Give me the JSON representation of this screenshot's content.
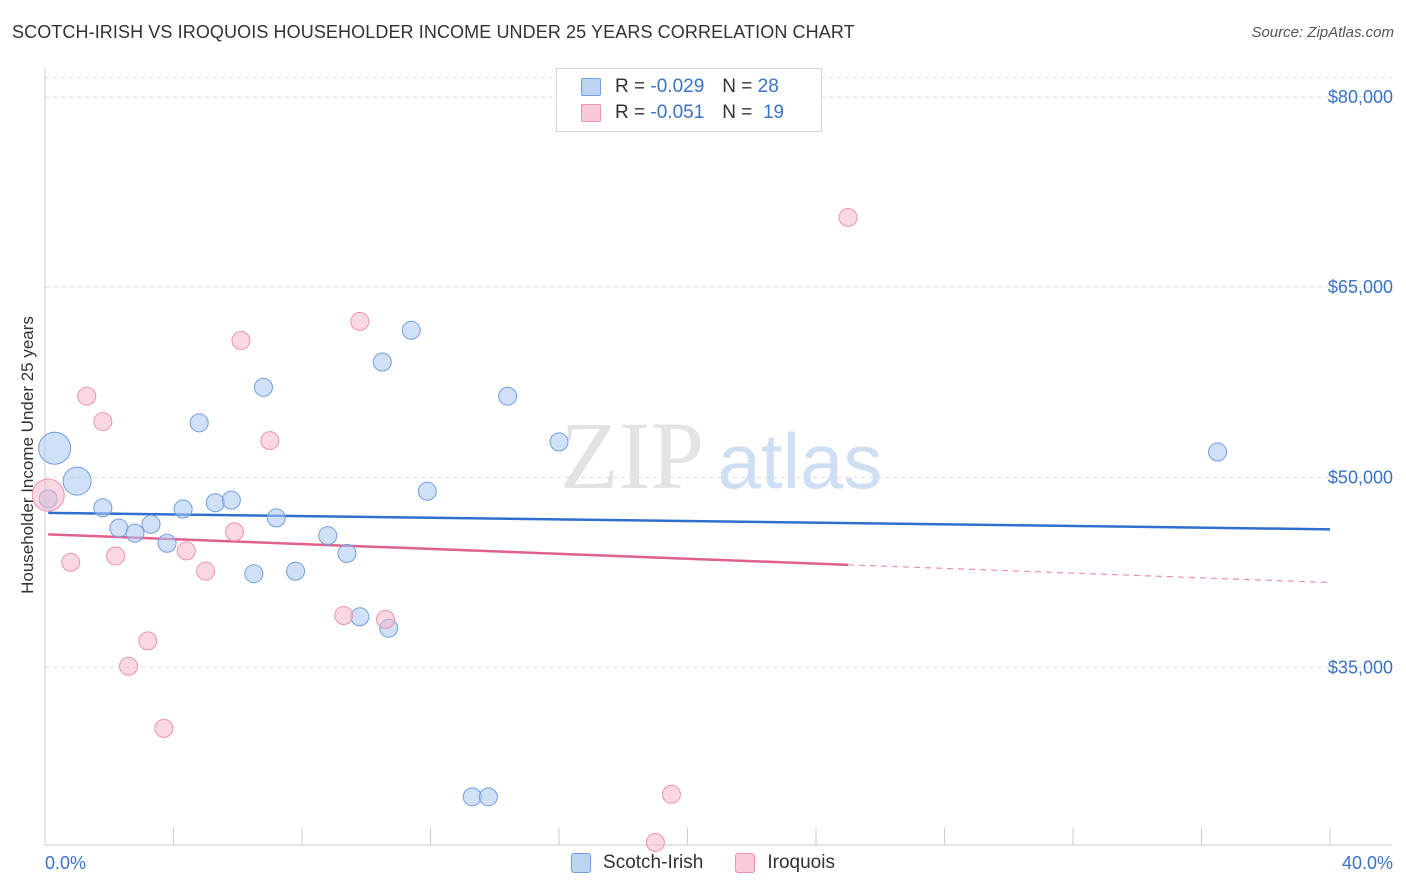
{
  "header": {
    "title": "SCOTCH-IRISH VS IROQUOIS HOUSEHOLDER INCOME UNDER 25 YEARS CORRELATION CHART",
    "source": "Source: ZipAtlas.com"
  },
  "watermark": {
    "zip": "ZIP",
    "atlas": "atlas"
  },
  "legend": {
    "rows": [
      {
        "r_label": "R =",
        "r_value": "-0.029",
        "n_label": "N =",
        "n_value": "28",
        "color": "#a9c8f0"
      },
      {
        "r_label": "R =",
        "r_value": "-0.051",
        "n_label": "N =",
        "n_value": "19",
        "color": "#f6b8cc"
      }
    ]
  },
  "chart_data": {
    "type": "scatter",
    "title": "SCOTCH-IRISH VS IROQUOIS HOUSEHOLDER INCOME UNDER 25 YEARS CORRELATION CHART",
    "xlabel": "",
    "ylabel": "Householder Income Under 25 years",
    "xlim": [
      0,
      40
    ],
    "ylim": [
      21000,
      81500
    ],
    "x_tick_labels": [
      "0.0%",
      "40.0%"
    ],
    "y_ticks": [
      {
        "value": 35000,
        "label": "$35,000"
      },
      {
        "value": 50000,
        "label": "$50,000"
      },
      {
        "value": 65000,
        "label": "$65,000"
      },
      {
        "value": 80000,
        "label": "$80,000"
      }
    ],
    "grid": true,
    "legend_position": "top-center",
    "series": [
      {
        "name": "Scotch-Irish",
        "color": "#a9c8f0",
        "stroke": "#6f9fe0",
        "trend_color": "#2f6fce",
        "points": [
          {
            "x": 0.3,
            "y": 52300,
            "size": 16
          },
          {
            "x": 1.0,
            "y": 49700,
            "size": 14
          },
          {
            "x": 1.8,
            "y": 47600,
            "size": 9
          },
          {
            "x": 2.3,
            "y": 46000,
            "size": 9
          },
          {
            "x": 2.8,
            "y": 45600,
            "size": 9
          },
          {
            "x": 3.3,
            "y": 46300,
            "size": 9
          },
          {
            "x": 3.8,
            "y": 44800,
            "size": 9
          },
          {
            "x": 4.3,
            "y": 47500,
            "size": 9
          },
          {
            "x": 4.8,
            "y": 54300,
            "size": 9
          },
          {
            "x": 5.3,
            "y": 48000,
            "size": 9
          },
          {
            "x": 5.8,
            "y": 48200,
            "size": 9
          },
          {
            "x": 6.5,
            "y": 42400,
            "size": 9
          },
          {
            "x": 6.8,
            "y": 57100,
            "size": 9
          },
          {
            "x": 7.2,
            "y": 46800,
            "size": 9
          },
          {
            "x": 7.8,
            "y": 42600,
            "size": 9
          },
          {
            "x": 8.8,
            "y": 45400,
            "size": 9
          },
          {
            "x": 9.4,
            "y": 44000,
            "size": 9
          },
          {
            "x": 9.8,
            "y": 39000,
            "size": 9
          },
          {
            "x": 10.5,
            "y": 59100,
            "size": 9
          },
          {
            "x": 10.7,
            "y": 38100,
            "size": 9
          },
          {
            "x": 11.4,
            "y": 61600,
            "size": 9
          },
          {
            "x": 11.9,
            "y": 48900,
            "size": 9
          },
          {
            "x": 13.3,
            "y": 24800,
            "size": 9
          },
          {
            "x": 13.8,
            "y": 24800,
            "size": 9
          },
          {
            "x": 14.4,
            "y": 56400,
            "size": 9
          },
          {
            "x": 16.0,
            "y": 52800,
            "size": 9
          },
          {
            "x": 36.5,
            "y": 52000,
            "size": 9
          },
          {
            "x": 0.1,
            "y": 48300,
            "size": 9
          }
        ],
        "trend": {
          "x": [
            0.1,
            40.0
          ],
          "y": [
            47200,
            45900
          ]
        }
      },
      {
        "name": "Iroquois",
        "color": "#f6b8cc",
        "stroke": "#ec93ae",
        "trend_color": "#e0618d",
        "points": [
          {
            "x": 0.1,
            "y": 48600,
            "size": 16
          },
          {
            "x": 0.8,
            "y": 43300,
            "size": 9
          },
          {
            "x": 1.3,
            "y": 56400,
            "size": 9
          },
          {
            "x": 1.8,
            "y": 54400,
            "size": 9
          },
          {
            "x": 2.2,
            "y": 43800,
            "size": 9
          },
          {
            "x": 2.6,
            "y": 35100,
            "size": 9
          },
          {
            "x": 3.2,
            "y": 37100,
            "size": 9
          },
          {
            "x": 3.7,
            "y": 30200,
            "size": 9
          },
          {
            "x": 4.4,
            "y": 44200,
            "size": 9
          },
          {
            "x": 5.0,
            "y": 42600,
            "size": 9
          },
          {
            "x": 5.9,
            "y": 45700,
            "size": 9
          },
          {
            "x": 6.1,
            "y": 60800,
            "size": 9
          },
          {
            "x": 7.0,
            "y": 52900,
            "size": 9
          },
          {
            "x": 9.3,
            "y": 39100,
            "size": 9
          },
          {
            "x": 9.8,
            "y": 62300,
            "size": 9
          },
          {
            "x": 10.6,
            "y": 38800,
            "size": 9
          },
          {
            "x": 19.5,
            "y": 25000,
            "size": 9
          },
          {
            "x": 19.0,
            "y": 21200,
            "size": 9
          },
          {
            "x": 25.0,
            "y": 70500,
            "size": 9
          }
        ],
        "trend": {
          "x": [
            0.1,
            25.0
          ],
          "y": [
            45500,
            43100
          ]
        },
        "trend_dashed": {
          "x": [
            25.0,
            40.0
          ],
          "y": [
            43100,
            41700
          ]
        }
      }
    ]
  }
}
